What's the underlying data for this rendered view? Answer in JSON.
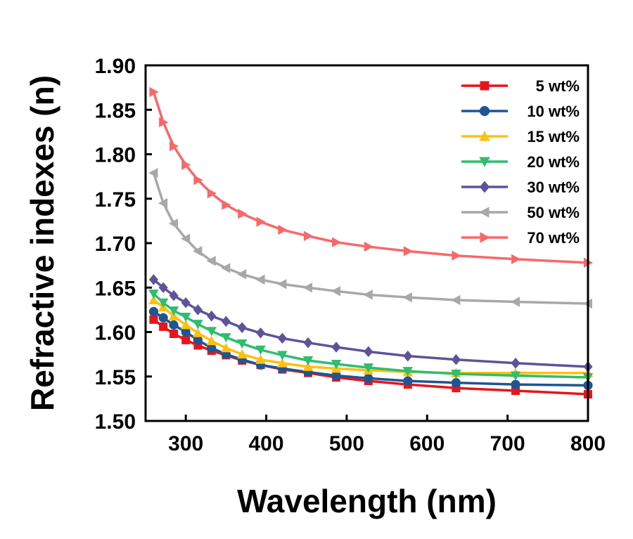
{
  "chart_data": {
    "type": "line",
    "title": "",
    "xlabel": "Wavelength (nm)",
    "ylabel": "Refractive indexes (n)",
    "xlim": [
      250,
      800
    ],
    "ylim": [
      1.5,
      1.9
    ],
    "xticks": [
      300,
      400,
      500,
      600,
      700,
      800
    ],
    "yticks": [
      1.5,
      1.55,
      1.6,
      1.65,
      1.7,
      1.75,
      1.8,
      1.85,
      1.9
    ],
    "xtick_labels": [
      "300",
      "400",
      "500",
      "600",
      "700",
      "800"
    ],
    "ytick_labels": [
      "1.50",
      "1.55",
      "1.60",
      "1.65",
      "1.70",
      "1.75",
      "1.80",
      "1.85",
      "1.90"
    ],
    "grid": false,
    "legend_position": "top-right",
    "x": [
      260,
      272,
      285,
      300,
      315,
      332,
      350,
      370,
      393,
      420,
      452,
      487,
      527,
      576,
      636,
      710,
      800
    ],
    "series": [
      {
        "name": "5 wt%",
        "color": "#e8141b",
        "marker": "square",
        "values": [
          1.614,
          1.606,
          1.598,
          1.591,
          1.585,
          1.579,
          1.574,
          1.568,
          1.563,
          1.558,
          1.554,
          1.549,
          1.545,
          1.541,
          1.537,
          1.534,
          1.53
        ]
      },
      {
        "name": "10 wt%",
        "color": "#1f5591",
        "marker": "circle",
        "values": [
          1.623,
          1.616,
          1.608,
          1.6,
          1.591,
          1.582,
          1.575,
          1.569,
          1.563,
          1.559,
          1.555,
          1.551,
          1.548,
          1.545,
          1.543,
          1.541,
          1.54
        ]
      },
      {
        "name": "15 wt%",
        "color": "#fec010",
        "marker": "triangle-up",
        "values": [
          1.636,
          1.628,
          1.618,
          1.608,
          1.599,
          1.59,
          1.582,
          1.575,
          1.569,
          1.565,
          1.561,
          1.559,
          1.557,
          1.555,
          1.554,
          1.554,
          1.554
        ]
      },
      {
        "name": "20 wt%",
        "color": "#2fbd6f",
        "marker": "triangle-down",
        "values": [
          1.643,
          1.633,
          1.624,
          1.617,
          1.609,
          1.601,
          1.594,
          1.587,
          1.58,
          1.574,
          1.568,
          1.564,
          1.56,
          1.556,
          1.553,
          1.551,
          1.549
        ]
      },
      {
        "name": "30 wt%",
        "color": "#5c549b",
        "marker": "diamond",
        "values": [
          1.659,
          1.65,
          1.641,
          1.633,
          1.625,
          1.618,
          1.612,
          1.605,
          1.599,
          1.593,
          1.588,
          1.583,
          1.578,
          1.573,
          1.569,
          1.565,
          1.561
        ]
      },
      {
        "name": "50 wt%",
        "color": "#a8a8a8",
        "marker": "triangle-left",
        "values": [
          1.779,
          1.745,
          1.722,
          1.705,
          1.691,
          1.68,
          1.672,
          1.665,
          1.659,
          1.654,
          1.65,
          1.646,
          1.642,
          1.639,
          1.636,
          1.634,
          1.632
        ]
      },
      {
        "name": "70 wt%",
        "color": "#f86869",
        "marker": "triangle-right",
        "values": [
          1.87,
          1.836,
          1.809,
          1.788,
          1.771,
          1.756,
          1.743,
          1.733,
          1.724,
          1.715,
          1.708,
          1.701,
          1.696,
          1.691,
          1.686,
          1.682,
          1.678
        ]
      }
    ]
  }
}
